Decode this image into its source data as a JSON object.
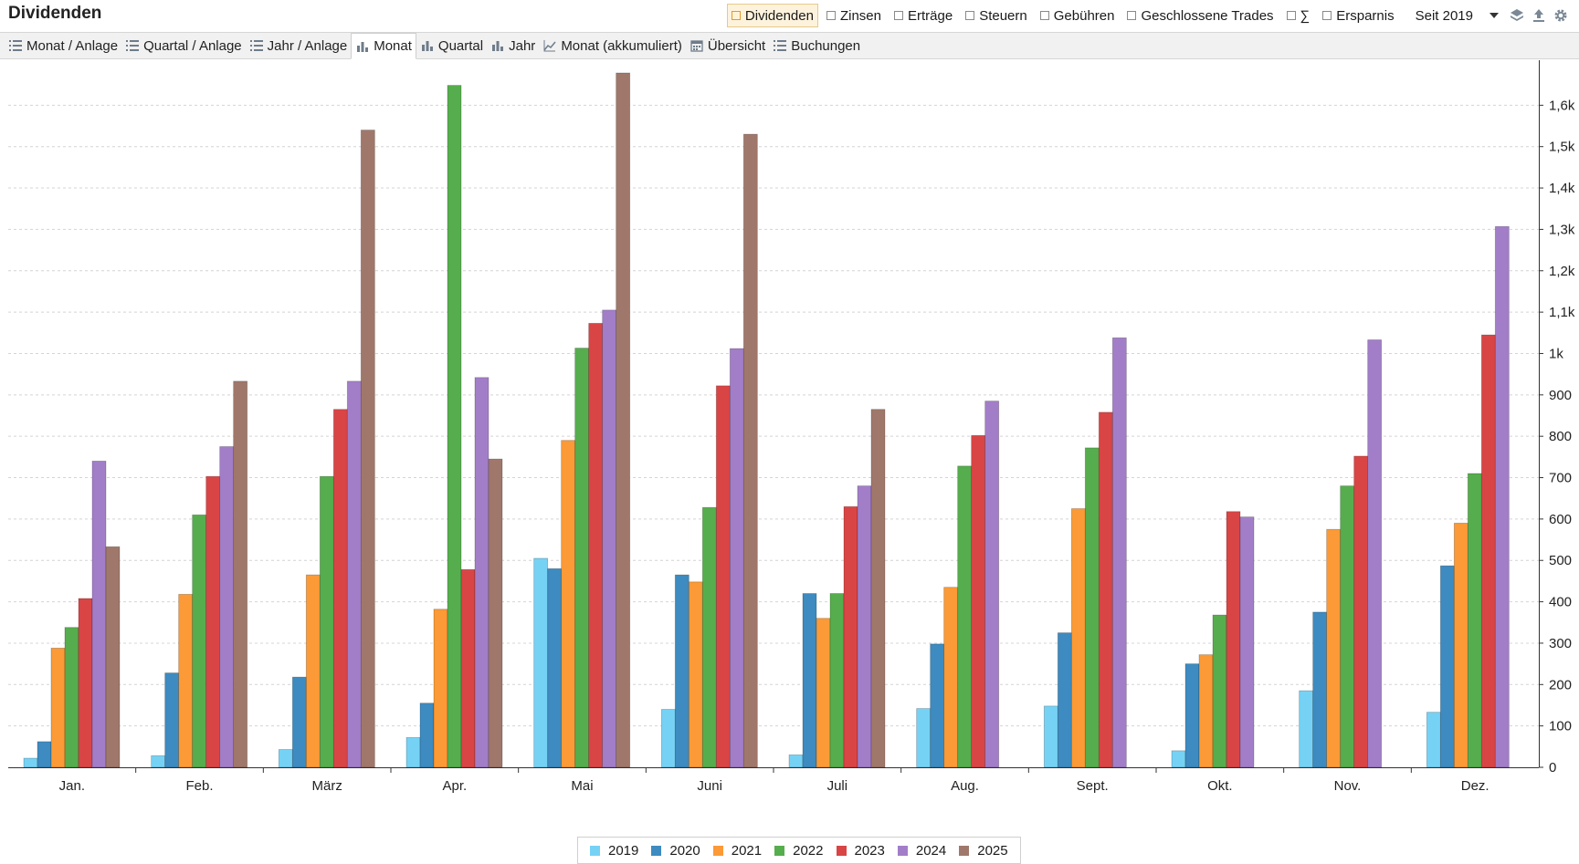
{
  "header": {
    "title": "Dividenden",
    "filters": [
      {
        "label": "Dividenden",
        "active": true
      },
      {
        "label": "Zinsen",
        "active": false
      },
      {
        "label": "Erträge",
        "active": false
      },
      {
        "label": "Steuern",
        "active": false
      },
      {
        "label": "Gebühren",
        "active": false
      },
      {
        "label": "Geschlossene Trades",
        "active": false
      },
      {
        "label": "∑",
        "active": false
      },
      {
        "label": "Ersparnis",
        "active": false
      }
    ],
    "period": "Seit 2019",
    "toolbar_icons": [
      "layers-icon",
      "export-icon",
      "gear-icon"
    ]
  },
  "tabs": [
    {
      "label": "Monat / Anlage",
      "icon": "list-icon",
      "active": false
    },
    {
      "label": "Quartal / Anlage",
      "icon": "list-icon",
      "active": false
    },
    {
      "label": "Jahr / Anlage",
      "icon": "list-icon",
      "active": false
    },
    {
      "label": "Monat",
      "icon": "bar-chart-icon",
      "active": true
    },
    {
      "label": "Quartal",
      "icon": "bar-chart-icon",
      "active": false
    },
    {
      "label": "Jahr",
      "icon": "bar-chart-icon",
      "active": false
    },
    {
      "label": "Monat (akkumuliert)",
      "icon": "line-chart-icon",
      "active": false
    },
    {
      "label": "Übersicht",
      "icon": "calendar-icon",
      "active": false
    },
    {
      "label": "Buchungen",
      "icon": "list-icon",
      "active": false
    }
  ],
  "chart_data": {
    "type": "bar",
    "categories": [
      "Jan.",
      "Feb.",
      "März",
      "Apr.",
      "Mai",
      "Juni",
      "Juli",
      "Aug.",
      "Sept.",
      "Okt.",
      "Nov.",
      "Dez."
    ],
    "series": [
      {
        "name": "2019",
        "color": "#76d2f5",
        "values": [
          22,
          28,
          43,
          72,
          505,
          140,
          30,
          142,
          148,
          40,
          185,
          133
        ]
      },
      {
        "name": "2020",
        "color": "#3d8bc0",
        "values": [
          62,
          228,
          218,
          155,
          480,
          465,
          420,
          298,
          325,
          250,
          375,
          487
        ]
      },
      {
        "name": "2021",
        "color": "#fb9a36",
        "values": [
          288,
          418,
          465,
          382,
          790,
          448,
          360,
          435,
          625,
          272,
          575,
          590
        ]
      },
      {
        "name": "2022",
        "color": "#56ad4d",
        "values": [
          338,
          610,
          703,
          1648,
          1013,
          628,
          420,
          728,
          772,
          368,
          680,
          710
        ]
      },
      {
        "name": "2023",
        "color": "#d94545",
        "values": [
          408,
          703,
          865,
          478,
          1073,
          922,
          630,
          802,
          858,
          618,
          752,
          1045
        ]
      },
      {
        "name": "2024",
        "color": "#a27ec8",
        "values": [
          740,
          775,
          933,
          942,
          1105,
          1012,
          680,
          885,
          1038,
          605,
          1033,
          1307
        ]
      },
      {
        "name": "2025",
        "color": "#a0786b",
        "values": [
          533,
          933,
          1540,
          745,
          1678,
          1530,
          865,
          null,
          null,
          null,
          null,
          null
        ]
      }
    ],
    "yticks": [
      "0",
      "100",
      "200",
      "300",
      "400",
      "500",
      "600",
      "700",
      "800",
      "900",
      "1k",
      "1,1k",
      "1,2k",
      "1,3k",
      "1,4k",
      "1,5k",
      "1,6k"
    ],
    "ylim": [
      0,
      1700
    ],
    "ystep": 100,
    "grid": true,
    "yaxis_position": "right",
    "legend_position": "bottom-center"
  }
}
